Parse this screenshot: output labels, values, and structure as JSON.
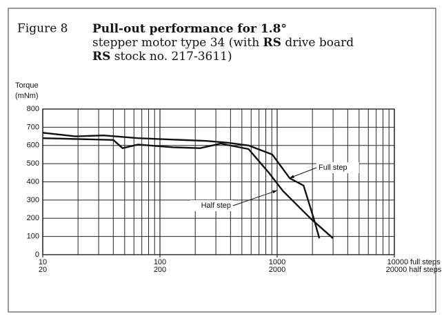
{
  "chart_data": {
    "type": "line",
    "figure_label": "Figure 8",
    "title_lines": [
      [
        {
          "text": "Pull-out performance for 1.8°",
          "bold": true
        }
      ],
      [
        {
          "text": "stepper motor type 34 (with ",
          "bold": false
        },
        {
          "text": "RS",
          "bold": true
        },
        {
          "text": " drive board",
          "bold": false
        }
      ],
      [
        {
          "text": "RS",
          "bold": true
        },
        {
          "text": " stock no. 217-3611)",
          "bold": false
        }
      ]
    ],
    "ylabel": [
      "Torque",
      "(mNm)"
    ],
    "xscale": "log",
    "grid": true,
    "xlim": [
      10,
      10000
    ],
    "ylim": [
      0,
      800
    ],
    "xticks": [
      10,
      100,
      1000,
      {
        "value": 10000,
        "label": "10000 full steps"
      }
    ],
    "xticks_secondary": [
      "20",
      "200",
      "2000",
      "20000 half steps"
    ],
    "yticks": [
      0,
      100,
      200,
      300,
      400,
      500,
      600,
      700,
      800
    ],
    "series": [
      {
        "name": "Full step",
        "color": "#111111",
        "x": [
          10,
          19,
          33,
          65,
          250,
          380,
          570,
          910,
          1280,
          1680,
          2050,
          2290
        ],
        "values": [
          670,
          650,
          655,
          640,
          625,
          615,
          600,
          550,
          420,
          380,
          200,
          90
        ]
      },
      {
        "name": "Half step",
        "color": "#111111",
        "x": [
          10,
          40,
          48,
          65,
          130,
          220,
          330,
          570,
          850,
          1120,
          1920,
          3000
        ],
        "values": [
          640,
          630,
          585,
          605,
          590,
          585,
          610,
          580,
          450,
          350,
          200,
          90
        ]
      }
    ]
  }
}
